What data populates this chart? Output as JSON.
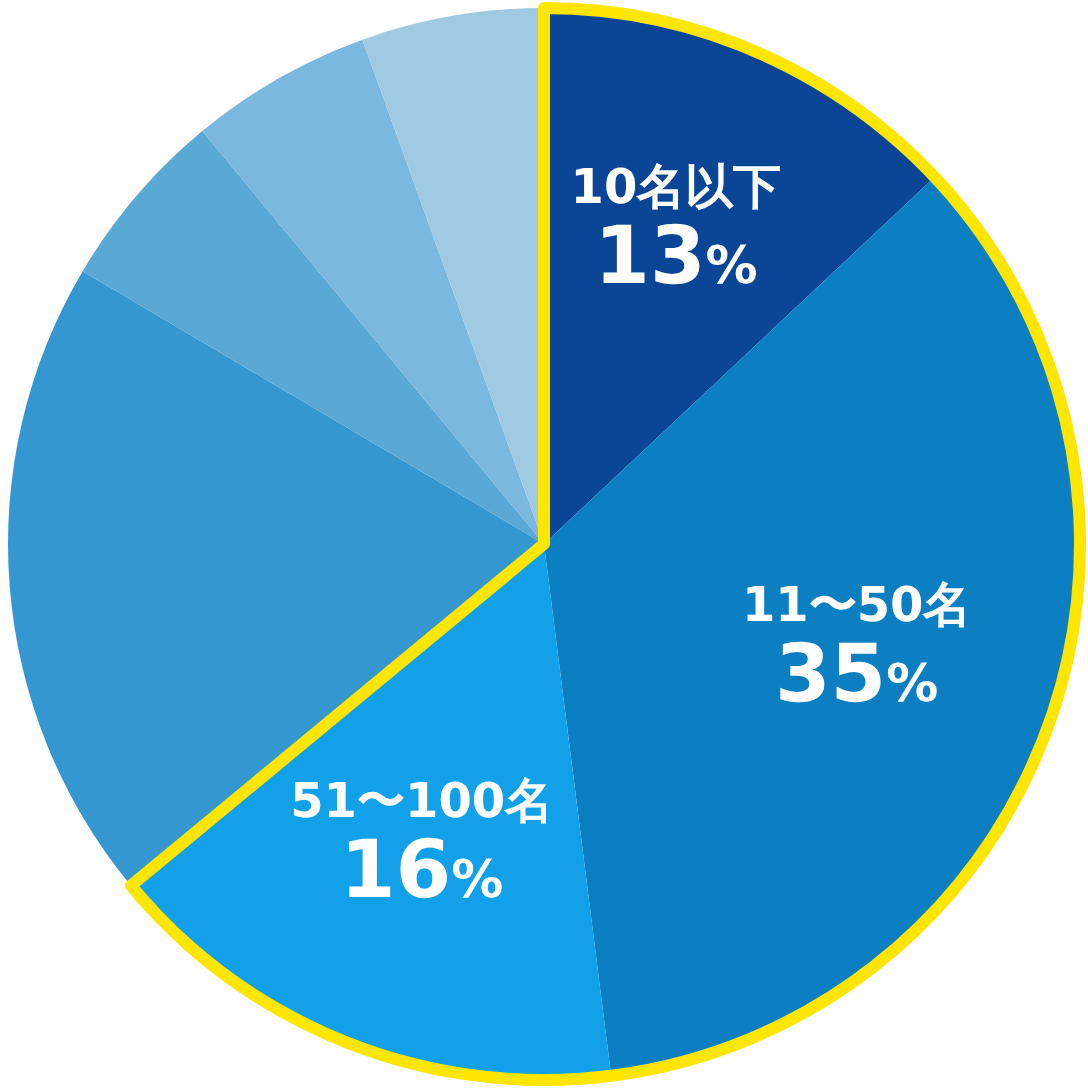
{
  "chart_data": {
    "type": "pie",
    "categories": [
      "10名以下",
      "11〜50名",
      "51〜100名",
      null,
      null,
      null,
      null
    ],
    "values": [
      13,
      35,
      16,
      19.5,
      5.5,
      5.5,
      5.5
    ],
    "colors": [
      "#0a4596",
      "#0b7fc1",
      "#12a0e8",
      "#3497cf",
      "#5aa8d4",
      "#7ab8e0",
      "#a0c9e2"
    ],
    "value_labels": [
      "13%",
      "35%",
      "16%",
      null,
      null,
      null,
      null
    ]
  }
}
